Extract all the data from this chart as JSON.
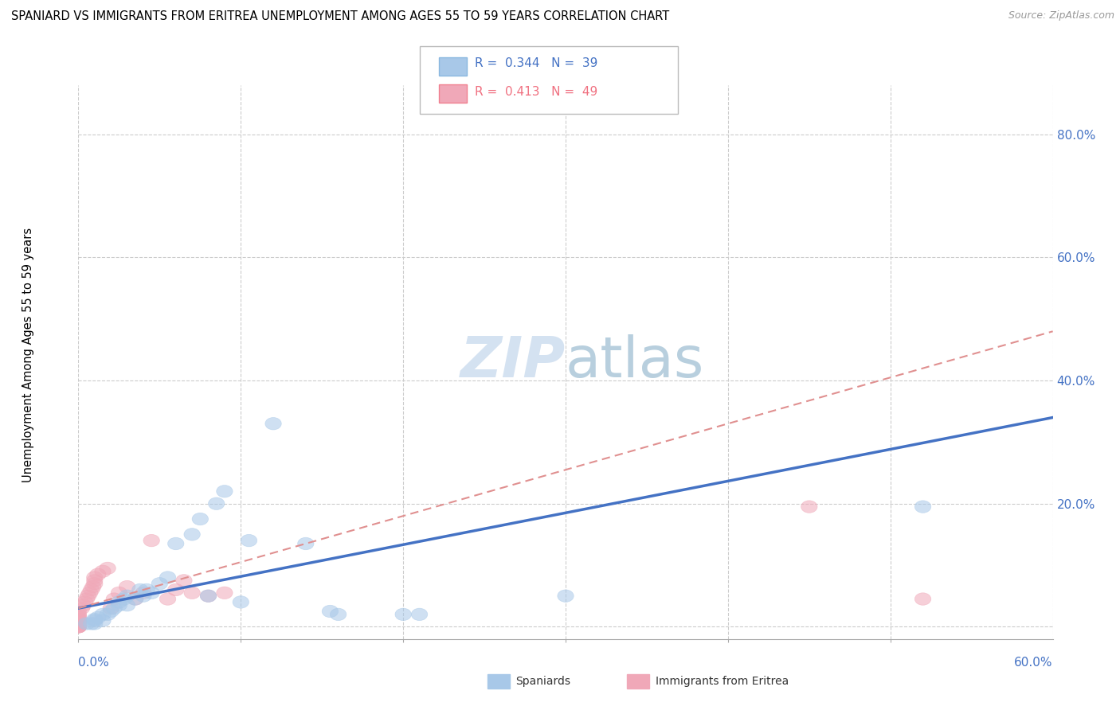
{
  "title": "SPANIARD VS IMMIGRANTS FROM ERITREA UNEMPLOYMENT AMONG AGES 55 TO 59 YEARS CORRELATION CHART",
  "source": "Source: ZipAtlas.com",
  "ylabel": "Unemployment Among Ages 55 to 59 years",
  "x_lim": [
    0.0,
    0.6
  ],
  "y_lim": [
    -0.02,
    0.88
  ],
  "blue_color": "#a8c8e8",
  "pink_color": "#f0a8b8",
  "line_blue": "#4472c4",
  "line_pink": "#e07880",
  "blue_trend_x": [
    0.0,
    0.6
  ],
  "blue_trend_y": [
    0.03,
    0.34
  ],
  "pink_trend_x": [
    0.0,
    0.6
  ],
  "pink_trend_y": [
    0.03,
    0.48
  ],
  "spaniards_x": [
    0.005,
    0.008,
    0.01,
    0.01,
    0.01,
    0.012,
    0.015,
    0.015,
    0.018,
    0.02,
    0.022,
    0.025,
    0.025,
    0.028,
    0.03,
    0.03,
    0.035,
    0.038,
    0.04,
    0.042,
    0.045,
    0.05,
    0.055,
    0.06,
    0.07,
    0.075,
    0.08,
    0.085,
    0.09,
    0.1,
    0.105,
    0.12,
    0.14,
    0.155,
    0.16,
    0.2,
    0.21,
    0.3,
    0.52
  ],
  "spaniards_y": [
    0.005,
    0.005,
    0.005,
    0.01,
    0.012,
    0.015,
    0.01,
    0.02,
    0.02,
    0.025,
    0.03,
    0.035,
    0.04,
    0.045,
    0.035,
    0.05,
    0.045,
    0.06,
    0.05,
    0.06,
    0.055,
    0.07,
    0.08,
    0.135,
    0.15,
    0.175,
    0.05,
    0.2,
    0.22,
    0.04,
    0.14,
    0.33,
    0.135,
    0.025,
    0.02,
    0.02,
    0.02,
    0.05,
    0.195
  ],
  "eritrea_x": [
    0.0,
    0.0,
    0.0,
    0.0,
    0.0,
    0.0,
    0.0,
    0.0,
    0.0,
    0.0,
    0.0,
    0.0,
    0.0,
    0.0,
    0.0,
    0.0,
    0.0,
    0.0,
    0.0,
    0.0,
    0.002,
    0.003,
    0.004,
    0.005,
    0.006,
    0.007,
    0.008,
    0.009,
    0.01,
    0.01,
    0.01,
    0.012,
    0.015,
    0.018,
    0.02,
    0.022,
    0.025,
    0.03,
    0.035,
    0.04,
    0.045,
    0.055,
    0.06,
    0.065,
    0.07,
    0.08,
    0.09,
    0.45,
    0.52
  ],
  "eritrea_y": [
    0.0,
    0.0,
    0.0,
    0.0,
    0.0,
    0.0,
    0.002,
    0.003,
    0.004,
    0.005,
    0.006,
    0.007,
    0.008,
    0.009,
    0.01,
    0.012,
    0.015,
    0.018,
    0.02,
    0.025,
    0.03,
    0.035,
    0.04,
    0.045,
    0.05,
    0.055,
    0.06,
    0.065,
    0.07,
    0.075,
    0.08,
    0.085,
    0.09,
    0.095,
    0.03,
    0.045,
    0.055,
    0.065,
    0.045,
    0.055,
    0.14,
    0.045,
    0.06,
    0.075,
    0.055,
    0.05,
    0.055,
    0.195,
    0.045
  ]
}
